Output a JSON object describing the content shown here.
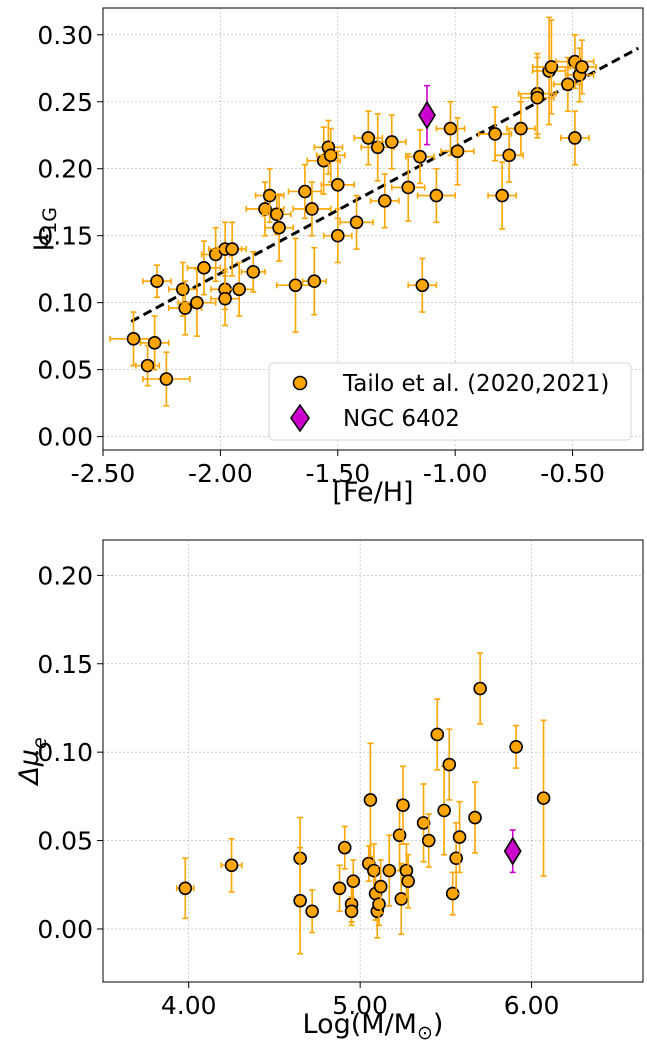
{
  "colors": {
    "gc": "#FFA500",
    "ngc": "#CC00CC",
    "edge": "#000000",
    "fit": "#000000"
  },
  "chart_data": [
    {
      "type": "scatter",
      "xlabel": "[Fe/H]",
      "ylabel_main": "μ",
      "ylabel_sub": "1G",
      "xlim": [
        -2.5,
        -0.2
      ],
      "ylim": [
        -0.01,
        0.32
      ],
      "xticks": [
        -2.5,
        -2.0,
        -1.5,
        -1.0,
        -0.5
      ],
      "xtick_labels": [
        "-2.50",
        "-2.00",
        "-1.50",
        "-1.00",
        "-0.50"
      ],
      "yticks": [
        0.0,
        0.05,
        0.1,
        0.15,
        0.2,
        0.25,
        0.3
      ],
      "ytick_labels": [
        "0.00",
        "0.05",
        "0.10",
        "0.15",
        "0.20",
        "0.25",
        "0.30"
      ],
      "grid": true,
      "legend_position": "lower-right",
      "fit_line": {
        "x": [
          -2.38,
          -0.22
        ],
        "y": [
          0.086,
          0.29
        ]
      },
      "series": [
        {
          "name": "Tailo et al. (2020,2021)",
          "marker": "circle",
          "points": [
            [
              -2.37,
              0.073,
              0.1,
              0.02
            ],
            [
              -2.31,
              0.053,
              0.05,
              0.015
            ],
            [
              -2.28,
              0.07,
              0.06,
              0.02
            ],
            [
              -2.27,
              0.116,
              0.06,
              0.012
            ],
            [
              -2.23,
              0.043,
              0.1,
              0.02
            ],
            [
              -2.16,
              0.11,
              0.06,
              0.02
            ],
            [
              -2.15,
              0.096,
              0.07,
              0.02
            ],
            [
              -2.1,
              0.1,
              0.08,
              0.025
            ],
            [
              -2.07,
              0.126,
              0.07,
              0.02
            ],
            [
              -2.02,
              0.136,
              0.06,
              0.02
            ],
            [
              -1.98,
              0.14,
              0.07,
              0.02
            ],
            [
              -1.98,
              0.11,
              0.06,
              0.015
            ],
            [
              -1.98,
              0.103,
              0.06,
              0.02
            ],
            [
              -1.95,
              0.14,
              0.06,
              0.02
            ],
            [
              -1.92,
              0.11,
              0.06,
              0.02
            ],
            [
              -1.86,
              0.123,
              0.05,
              0.015
            ],
            [
              -1.81,
              0.17,
              0.08,
              0.02
            ],
            [
              -1.79,
              0.18,
              0.06,
              0.02
            ],
            [
              -1.76,
              0.166,
              0.06,
              0.015
            ],
            [
              -1.75,
              0.156,
              0.06,
              0.025
            ],
            [
              -1.68,
              0.113,
              0.08,
              0.035
            ],
            [
              -1.64,
              0.183,
              0.07,
              0.02
            ],
            [
              -1.61,
              0.17,
              0.08,
              0.02
            ],
            [
              -1.6,
              0.116,
              0.05,
              0.025
            ],
            [
              -1.56,
              0.206,
              0.07,
              0.025
            ],
            [
              -1.54,
              0.216,
              0.06,
              0.02
            ],
            [
              -1.53,
              0.21,
              0.06,
              0.02
            ],
            [
              -1.5,
              0.188,
              0.07,
              0.025
            ],
            [
              -1.5,
              0.15,
              0.06,
              0.02
            ],
            [
              -1.42,
              0.16,
              0.07,
              0.02
            ],
            [
              -1.37,
              0.223,
              0.06,
              0.02
            ],
            [
              -1.33,
              0.216,
              0.07,
              0.025
            ],
            [
              -1.3,
              0.176,
              0.06,
              0.02
            ],
            [
              -1.27,
              0.22,
              0.06,
              0.02
            ],
            [
              -1.2,
              0.186,
              0.07,
              0.025
            ],
            [
              -1.15,
              0.209,
              0.06,
              0.02
            ],
            [
              -1.14,
              0.113,
              0.06,
              0.02
            ],
            [
              -1.08,
              0.18,
              0.08,
              0.02
            ],
            [
              -1.02,
              0.23,
              0.06,
              0.02
            ],
            [
              -0.99,
              0.213,
              0.07,
              0.025
            ],
            [
              -0.83,
              0.226,
              0.07,
              0.02
            ],
            [
              -0.8,
              0.18,
              0.06,
              0.025
            ],
            [
              -0.77,
              0.21,
              0.06,
              0.02
            ],
            [
              -0.72,
              0.23,
              0.06,
              0.02
            ],
            [
              -0.65,
              0.256,
              0.08,
              0.03
            ],
            [
              -0.65,
              0.253,
              0.07,
              0.03
            ],
            [
              -0.6,
              0.273,
              0.07,
              0.04
            ],
            [
              -0.59,
              0.276,
              0.08,
              0.035
            ],
            [
              -0.52,
              0.263,
              0.06,
              0.02
            ],
            [
              -0.49,
              0.28,
              0.08,
              0.02
            ],
            [
              -0.47,
              0.27,
              0.06,
              0.02
            ],
            [
              -0.46,
              0.276,
              0.06,
              0.02
            ],
            [
              -0.49,
              0.223,
              0.06,
              0.02
            ]
          ]
        },
        {
          "name": "NGC 6402",
          "marker": "diamond",
          "points": [
            [
              -1.12,
              0.24,
              0.0,
              0.022
            ]
          ]
        }
      ]
    },
    {
      "type": "scatter",
      "xlabel_main": "Log(M/M",
      "xlabel_sub": "⊙",
      "xlabel_end": ")",
      "ylabel_main": "Δμ",
      "ylabel_sub": "e",
      "xlim": [
        3.5,
        6.65
      ],
      "ylim": [
        -0.03,
        0.22
      ],
      "xticks": [
        4.0,
        5.0,
        6.0
      ],
      "xtick_labels": [
        "4.00",
        "5.00",
        "6.00"
      ],
      "yticks": [
        0.0,
        0.05,
        0.1,
        0.15,
        0.2
      ],
      "ytick_labels": [
        "0.00",
        "0.05",
        "0.10",
        "0.15",
        "0.20"
      ],
      "grid": true,
      "series": [
        {
          "name": "Tailo et al. (2020,2021)",
          "marker": "circle",
          "points": [
            [
              3.98,
              0.023,
              0.05,
              0.017
            ],
            [
              4.25,
              0.036,
              0.06,
              0.015
            ],
            [
              4.65,
              0.04,
              0.0,
              0.023
            ],
            [
              4.65,
              0.016,
              0.0,
              0.03
            ],
            [
              4.72,
              0.01,
              0.0,
              0.012
            ],
            [
              4.88,
              0.023,
              0.0,
              0.013
            ],
            [
              4.91,
              0.046,
              0.0,
              0.012
            ],
            [
              4.95,
              0.014,
              0.0,
              0.01
            ],
            [
              4.95,
              0.01,
              0.0,
              0.008
            ],
            [
              4.96,
              0.027,
              0.0,
              0.012
            ],
            [
              5.05,
              0.037,
              0.0,
              0.01
            ],
            [
              5.06,
              0.073,
              0.0,
              0.032
            ],
            [
              5.08,
              0.033,
              0.0,
              0.015
            ],
            [
              5.09,
              0.02,
              0.0,
              0.015
            ],
            [
              5.1,
              0.01,
              0.0,
              0.015
            ],
            [
              5.11,
              0.014,
              0.0,
              0.012
            ],
            [
              5.12,
              0.024,
              0.0,
              0.015
            ],
            [
              5.17,
              0.033,
              0.0,
              0.02
            ],
            [
              5.23,
              0.053,
              0.0,
              0.02
            ],
            [
              5.24,
              0.017,
              0.0,
              0.02
            ],
            [
              5.25,
              0.07,
              0.0,
              0.022
            ],
            [
              5.27,
              0.033,
              0.0,
              0.015
            ],
            [
              5.28,
              0.027,
              0.0,
              0.015
            ],
            [
              5.37,
              0.06,
              0.0,
              0.022
            ],
            [
              5.4,
              0.05,
              0.0,
              0.015
            ],
            [
              5.45,
              0.11,
              0.0,
              0.02
            ],
            [
              5.49,
              0.067,
              0.0,
              0.025
            ],
            [
              5.52,
              0.093,
              0.0,
              0.02
            ],
            [
              5.54,
              0.02,
              0.0,
              0.012
            ],
            [
              5.56,
              0.04,
              0.0,
              0.02
            ],
            [
              5.58,
              0.052,
              0.0,
              0.02
            ],
            [
              5.67,
              0.063,
              0.0,
              0.02
            ],
            [
              5.7,
              0.136,
              0.0,
              0.02
            ],
            [
              5.91,
              0.103,
              0.0,
              0.012
            ],
            [
              6.07,
              0.074,
              0.0,
              0.044
            ]
          ]
        },
        {
          "name": "NGC 6402",
          "marker": "diamond",
          "points": [
            [
              5.89,
              0.044,
              0.0,
              0.012
            ]
          ]
        }
      ]
    }
  ]
}
